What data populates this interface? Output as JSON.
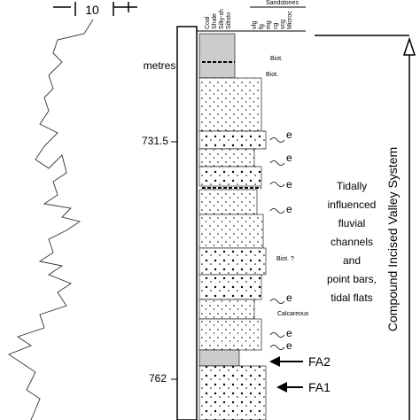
{
  "scale": {
    "label": "10"
  },
  "depth": {
    "unit": "metres",
    "marks": [
      "731.5",
      "762"
    ]
  },
  "header": {
    "lithology": [
      "Coal",
      "Shale",
      "Silty-sh",
      "Siltsto"
    ],
    "grain_size_group": "Sandstones",
    "grain_sizes": [
      "vfg",
      "fg",
      "mg",
      "cg",
      "vcg",
      "Microc"
    ]
  },
  "annotations": {
    "biot_1": "Biot.",
    "biot_2": "Biot.",
    "biot_3": "Biot. ?",
    "calcareous": "Calcareous",
    "e": [
      "e",
      "e",
      "e",
      "e",
      "e",
      "e",
      "e"
    ]
  },
  "interpretation": [
    "Tidally",
    "influenced",
    "fluvial",
    "channels",
    "and",
    "point bars,",
    "tidal flats"
  ],
  "facies": [
    "FA2",
    "FA1"
  ],
  "system": "Compound Incised Valley System"
}
